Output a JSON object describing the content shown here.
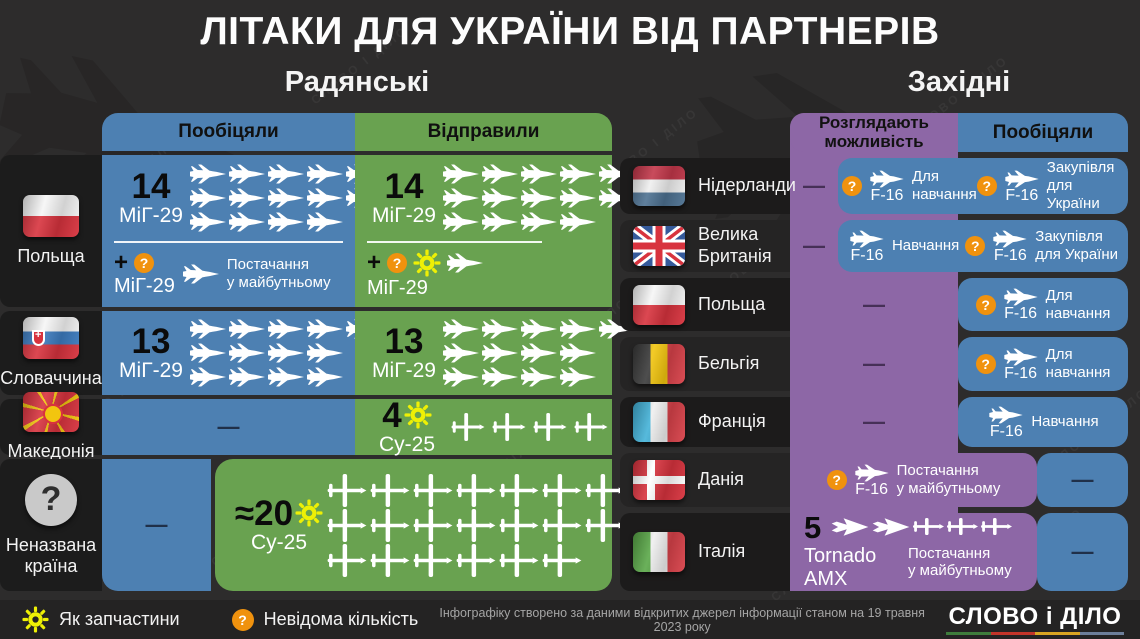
{
  "title": "ЛІТАКИ ДЛЯ УКРАЇНИ ВІД ПАРТНЕРІВ",
  "watermark": "СЛОВО І ДІЛО",
  "sections": {
    "soviet": "Радянські",
    "western": "Західні"
  },
  "colors": {
    "blue": "#4d80b2",
    "green": "#69a250",
    "purple": "#8d67a6",
    "orange": "#f0920e",
    "gear_yellow": "#eef005"
  },
  "chart_data": {
    "type": "table",
    "title": "Літаки для України від партнерів",
    "as_of": "19 травня 2023",
    "soviet": [
      {
        "country": "Польща",
        "promised": {
          "count": 14,
          "type": "МіГ-29"
        },
        "promised_extra": {
          "count": "невідомо",
          "type": "МіГ-29",
          "note": "Постачання у майбутньому"
        },
        "sent": {
          "count": 14,
          "type": "МіГ-29"
        },
        "sent_extra": {
          "count": "невідомо",
          "type": "МіГ-29",
          "as_spare_parts": true
        }
      },
      {
        "country": "Словаччина",
        "promised": {
          "count": 13,
          "type": "МіГ-29"
        },
        "sent": {
          "count": 13,
          "type": "МіГ-29"
        }
      },
      {
        "country": "Македонія",
        "promised": null,
        "sent": {
          "count": 4,
          "type": "Су-25",
          "as_spare_parts": true
        }
      },
      {
        "country": "Неназвана країна",
        "promised": null,
        "sent": {
          "count": "≈20",
          "type": "Су-25",
          "as_spare_parts": true
        }
      }
    ],
    "western": [
      {
        "country": "Нідерланди",
        "considering": null,
        "promised": [
          {
            "type": "F-16",
            "purpose": "Для навчання",
            "count": "невідомо"
          },
          {
            "type": "F-16",
            "purpose": "Закупівля для України",
            "count": "невідомо"
          }
        ]
      },
      {
        "country": "Велика Британія",
        "considering": null,
        "promised": [
          {
            "type": "F-16",
            "purpose": "Навчання"
          },
          {
            "type": "F-16",
            "purpose": "Закупівля для України",
            "count": "невідомо"
          }
        ]
      },
      {
        "country": "Польща",
        "considering": null,
        "promised": [
          {
            "type": "F-16",
            "purpose": "Для навчання",
            "count": "невідомо"
          }
        ]
      },
      {
        "country": "Бельгія",
        "considering": null,
        "promised": [
          {
            "type": "F-16",
            "purpose": "Для навчання",
            "count": "невідомо"
          }
        ]
      },
      {
        "country": "Франція",
        "considering": null,
        "promised": [
          {
            "type": "F-16",
            "purpose": "Навчання"
          }
        ]
      },
      {
        "country": "Данія",
        "considering": [
          {
            "type": "F-16",
            "purpose": "Постачання у майбутньому",
            "count": "невідомо"
          }
        ],
        "promised": null
      },
      {
        "country": "Італія",
        "considering": [
          {
            "type": "Tornado, AMX",
            "purpose": "Постачання у майбутньому",
            "count": 5
          }
        ],
        "promised": null
      }
    ]
  },
  "soviet_table": {
    "headers": {
      "promised": "Пообіцяли",
      "sent": "Відправили"
    },
    "rows": [
      {
        "country": "Польща",
        "flag": "poland",
        "promised": {
          "count": "14",
          "type": "МіГ-29",
          "icon": "mig",
          "icon_rows": [
            5,
            5,
            4
          ]
        },
        "promised_extra": {
          "plus": "+",
          "unknown": true,
          "type": "МіГ-29",
          "note_line1": "Постачання",
          "note_line2": "у майбутньому"
        },
        "sent": {
          "count": "14",
          "type": "МіГ-29",
          "icon": "mig",
          "icon_rows": [
            5,
            5,
            4
          ]
        },
        "sent_extra": {
          "plus": "+",
          "unknown": true,
          "gear": true,
          "type": "МіГ-29"
        }
      },
      {
        "country": "Словаччина",
        "flag": "slovakia",
        "promised": {
          "count": "13",
          "type": "МіГ-29",
          "icon": "mig",
          "icon_rows": [
            5,
            4,
            4
          ]
        },
        "sent": {
          "count": "13",
          "type": "МіГ-29",
          "icon": "mig",
          "icon_rows": [
            5,
            4,
            4
          ]
        }
      },
      {
        "country": "Македонія",
        "flag": "macedonia",
        "promised_dash": "—",
        "sent": {
          "count": "4",
          "type": "Су-25",
          "gear": true,
          "icon": "su25",
          "icon_rows": [
            4
          ]
        }
      },
      {
        "country_line1": "Неназвана",
        "country_line2": "країна",
        "flag": "unknown",
        "promised_dash": "—",
        "sent": {
          "count": "≈20",
          "type": "Су-25",
          "gear": true,
          "icon": "su25",
          "icon_rows": [
            7,
            7,
            6
          ]
        }
      }
    ]
  },
  "western_table": {
    "headers": {
      "considering_line1": "Розглядають",
      "considering_line2": "можливість",
      "promised": "Пообіцяли"
    },
    "rows": [
      {
        "country": "Нідерланди",
        "flag": "netherlands",
        "considering_dash": "—",
        "promised_entries": [
          {
            "unknown": true,
            "plane": "F-16",
            "line1": "Для",
            "line2": "навчання"
          },
          {
            "unknown": true,
            "plane": "F-16",
            "line1": "Закупівля",
            "line2": "для України"
          }
        ]
      },
      {
        "country_line1": "Велика",
        "country_line2": "Британія",
        "flag": "uk",
        "considering_dash": "—",
        "promised_entries": [
          {
            "unknown": false,
            "plane": "F-16",
            "line1": "Навчання",
            "line2": ""
          },
          {
            "unknown": true,
            "plane": "F-16",
            "line1": "Закупівля",
            "line2": "для України"
          }
        ]
      },
      {
        "country": "Польща",
        "flag": "poland",
        "considering_dash": "—",
        "promised_entries": [
          {
            "unknown": true,
            "plane": "F-16",
            "line1": "Для",
            "line2": "навчання"
          }
        ]
      },
      {
        "country": "Бельгія",
        "flag": "belgium",
        "considering_dash": "—",
        "promised_entries": [
          {
            "unknown": true,
            "plane": "F-16",
            "line1": "Для",
            "line2": "навчання"
          }
        ]
      },
      {
        "country": "Франція",
        "flag": "france",
        "considering_dash": "—",
        "promised_entries": [
          {
            "unknown": false,
            "plane": "F-16",
            "line1": "Навчання",
            "line2": ""
          }
        ]
      },
      {
        "country": "Данія",
        "flag": "denmark",
        "promised_dash": "—",
        "considering_entry": {
          "unknown": true,
          "plane": "F-16",
          "line1": "Постачання",
          "line2": "у майбутньому"
        }
      },
      {
        "country": "Італія",
        "flag": "italy",
        "promised_dash": "—",
        "considering_italy": {
          "count": "5",
          "type_line1": "Tornado",
          "type_line2": "AMX",
          "note_line1": "Постачання",
          "note_line2": "у майбутньому",
          "icon_rows": [
            [
              "tornado",
              "tornado",
              "amx",
              "amx",
              "amx"
            ]
          ]
        }
      }
    ]
  },
  "legend": {
    "gear_label": "Як запчастини",
    "unknown_label": "Невідома кількість"
  },
  "footer": {
    "note": "Інфографіку створено за даними відкритих джерел інформації станом на 19 травня 2023 року",
    "logo": "СЛОВО і ДІЛО",
    "logo_bar_colors": [
      "#3e7d3c",
      "#c2352a",
      "#d9a523",
      "#6d7f9a"
    ]
  }
}
